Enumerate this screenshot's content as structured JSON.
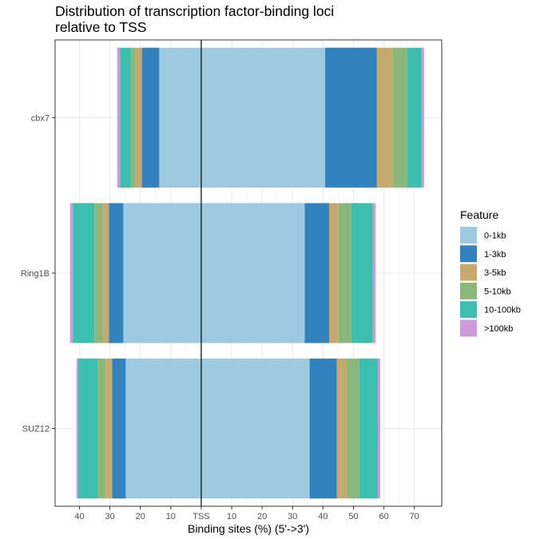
{
  "chart_data": {
    "type": "bar",
    "orientation": "horizontal",
    "stacked": true,
    "title_lines": [
      "Distribution of transcription factor-binding loci",
      "relative to TSS"
    ],
    "xlabel": "Binding sites (%) (5'->3')",
    "ylabel": "",
    "x_range": [
      -48,
      79
    ],
    "x_ticks": [
      {
        "value": -40,
        "label": "40"
      },
      {
        "value": -30,
        "label": "30"
      },
      {
        "value": -20,
        "label": "20"
      },
      {
        "value": -10,
        "label": "10"
      },
      {
        "value": 0,
        "label": "TSS"
      },
      {
        "value": 10,
        "label": "10"
      },
      {
        "value": 20,
        "label": "20"
      },
      {
        "value": 30,
        "label": "30"
      },
      {
        "value": 40,
        "label": "40"
      },
      {
        "value": 50,
        "label": "50"
      },
      {
        "value": 60,
        "label": "60"
      },
      {
        "value": 70,
        "label": "70"
      }
    ],
    "categories": [
      "cbx7",
      "Ring1B",
      "SUZ12"
    ],
    "grid": true,
    "tss_line": true,
    "legend": {
      "title": "Feature",
      "position": "right",
      "items": [
        {
          "label": "0-1kb",
          "color": "#9ECAE1"
        },
        {
          "label": "1-3kb",
          "color": "#3182BD"
        },
        {
          "label": "3-5kb",
          "color": "#C6A96C"
        },
        {
          "label": "5-10kb",
          "color": "#8BB87A"
        },
        {
          "label": "10-100kb",
          "color": "#3DBFB0"
        },
        {
          "label": ">100kb",
          "color": "#CE9ADB"
        }
      ]
    },
    "series_upstream": [
      {
        "name": "0-1kb",
        "values": [
          13.8,
          25.6,
          24.8
        ]
      },
      {
        "name": "1-3kb",
        "values": [
          5.7,
          4.7,
          4.5
        ]
      },
      {
        "name": "3-5kb",
        "values": [
          2.1,
          2.1,
          2.1
        ]
      },
      {
        "name": "5-10kb",
        "values": [
          1.4,
          2.7,
          2.6
        ]
      },
      {
        "name": "10-100kb",
        "values": [
          3.7,
          7.1,
          6.4
        ]
      },
      {
        "name": ">100kb",
        "values": [
          0.9,
          0.9,
          0.6
        ]
      }
    ],
    "series_downstream": [
      {
        "name": "0-1kb",
        "values": [
          40.7,
          34.0,
          35.6
        ]
      },
      {
        "name": "1-3kb",
        "values": [
          17.0,
          8.0,
          8.9
        ]
      },
      {
        "name": "3-5kb",
        "values": [
          5.2,
          3.1,
          3.3
        ]
      },
      {
        "name": "5-10kb",
        "values": [
          4.8,
          4.2,
          4.1
        ]
      },
      {
        "name": "10-100kb",
        "values": [
          4.7,
          7.1,
          6.1
        ]
      },
      {
        "name": ">100kb",
        "values": [
          0.8,
          0.9,
          0.8
        ]
      }
    ]
  }
}
